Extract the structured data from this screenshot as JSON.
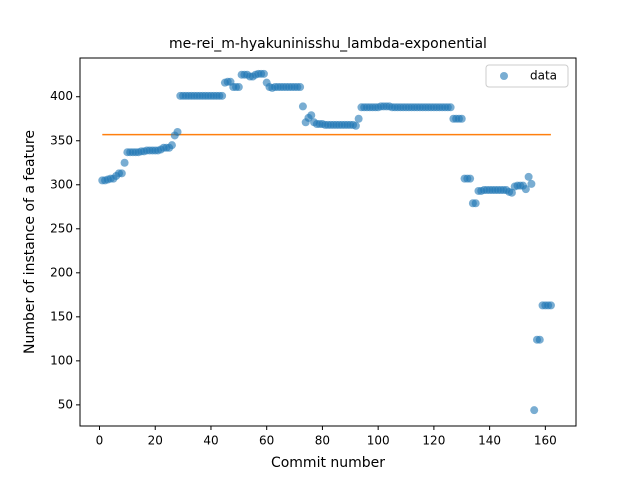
{
  "chart_data": {
    "type": "scatter",
    "title": "me-rei_m-hyakuninisshu_lambda-exponential",
    "xlabel": "Commit number",
    "ylabel": "Number of instance of a feature",
    "xlim": [
      -7,
      171
    ],
    "ylim": [
      26,
      444
    ],
    "xticks": [
      0,
      20,
      40,
      60,
      80,
      100,
      120,
      140,
      160
    ],
    "yticks": [
      50,
      100,
      150,
      200,
      250,
      300,
      350,
      400
    ],
    "legend": "upper right",
    "series": [
      {
        "name": "data",
        "color": "#1f77b4",
        "x": [
          1,
          2,
          3,
          4,
          5,
          6,
          7,
          8,
          9,
          10,
          11,
          12,
          13,
          14,
          15,
          16,
          17,
          18,
          19,
          20,
          21,
          22,
          23,
          24,
          25,
          26,
          27,
          28,
          29,
          30,
          31,
          32,
          33,
          34,
          35,
          36,
          37,
          38,
          39,
          40,
          41,
          42,
          43,
          44,
          45,
          46,
          47,
          48,
          49,
          50,
          51,
          52,
          53,
          54,
          55,
          56,
          57,
          58,
          59,
          60,
          61,
          62,
          63,
          64,
          65,
          66,
          67,
          68,
          69,
          70,
          71,
          72,
          73,
          74,
          75,
          76,
          77,
          78,
          79,
          80,
          81,
          82,
          83,
          84,
          85,
          86,
          87,
          88,
          89,
          90,
          91,
          92,
          93,
          94,
          95,
          96,
          97,
          98,
          99,
          100,
          101,
          102,
          103,
          104,
          105,
          106,
          107,
          108,
          109,
          110,
          111,
          112,
          113,
          114,
          115,
          116,
          117,
          118,
          119,
          120,
          121,
          122,
          123,
          124,
          125,
          126,
          127,
          128,
          129,
          130,
          131,
          132,
          133,
          134,
          135,
          136,
          137,
          138,
          139,
          140,
          141,
          142,
          143,
          144,
          145,
          146,
          147,
          148,
          149,
          150,
          151,
          152,
          153,
          154,
          155,
          156,
          157,
          158,
          159,
          160,
          161,
          162
        ],
        "values": [
          305,
          305,
          306,
          307,
          307,
          310,
          313,
          313,
          325,
          337,
          337,
          337,
          337,
          337,
          338,
          338,
          339,
          339,
          339,
          339,
          339,
          340,
          342,
          342,
          342,
          345,
          356,
          360,
          401,
          401,
          401,
          401,
          401,
          401,
          401,
          401,
          401,
          401,
          401,
          401,
          401,
          401,
          401,
          401,
          416,
          417,
          417,
          411,
          411,
          411,
          425,
          425,
          425,
          423,
          423,
          425,
          426,
          426,
          426,
          416,
          411,
          410,
          411,
          411,
          411,
          411,
          411,
          411,
          411,
          411,
          411,
          411,
          389,
          371,
          376,
          379,
          371,
          369,
          369,
          369,
          368,
          368,
          368,
          368,
          368,
          368,
          368,
          368,
          368,
          368,
          368,
          367,
          375,
          388,
          388,
          388,
          388,
          388,
          388,
          388,
          389,
          389,
          389,
          389,
          388,
          388,
          388,
          388,
          388,
          388,
          388,
          388,
          388,
          388,
          388,
          388,
          388,
          388,
          388,
          388,
          388,
          388,
          388,
          388,
          388,
          388,
          375,
          375,
          375,
          375,
          307,
          307,
          307,
          279,
          279,
          293,
          293,
          294,
          294,
          294,
          294,
          294,
          294,
          294,
          294,
          294,
          292,
          291,
          298,
          299,
          299,
          299,
          295,
          309,
          301,
          44,
          124,
          124,
          163,
          163,
          163,
          163
        ]
      }
    ],
    "fit": {
      "color": "#ff7f0e",
      "x": [
        1,
        162
      ],
      "values": [
        357,
        357
      ]
    }
  }
}
